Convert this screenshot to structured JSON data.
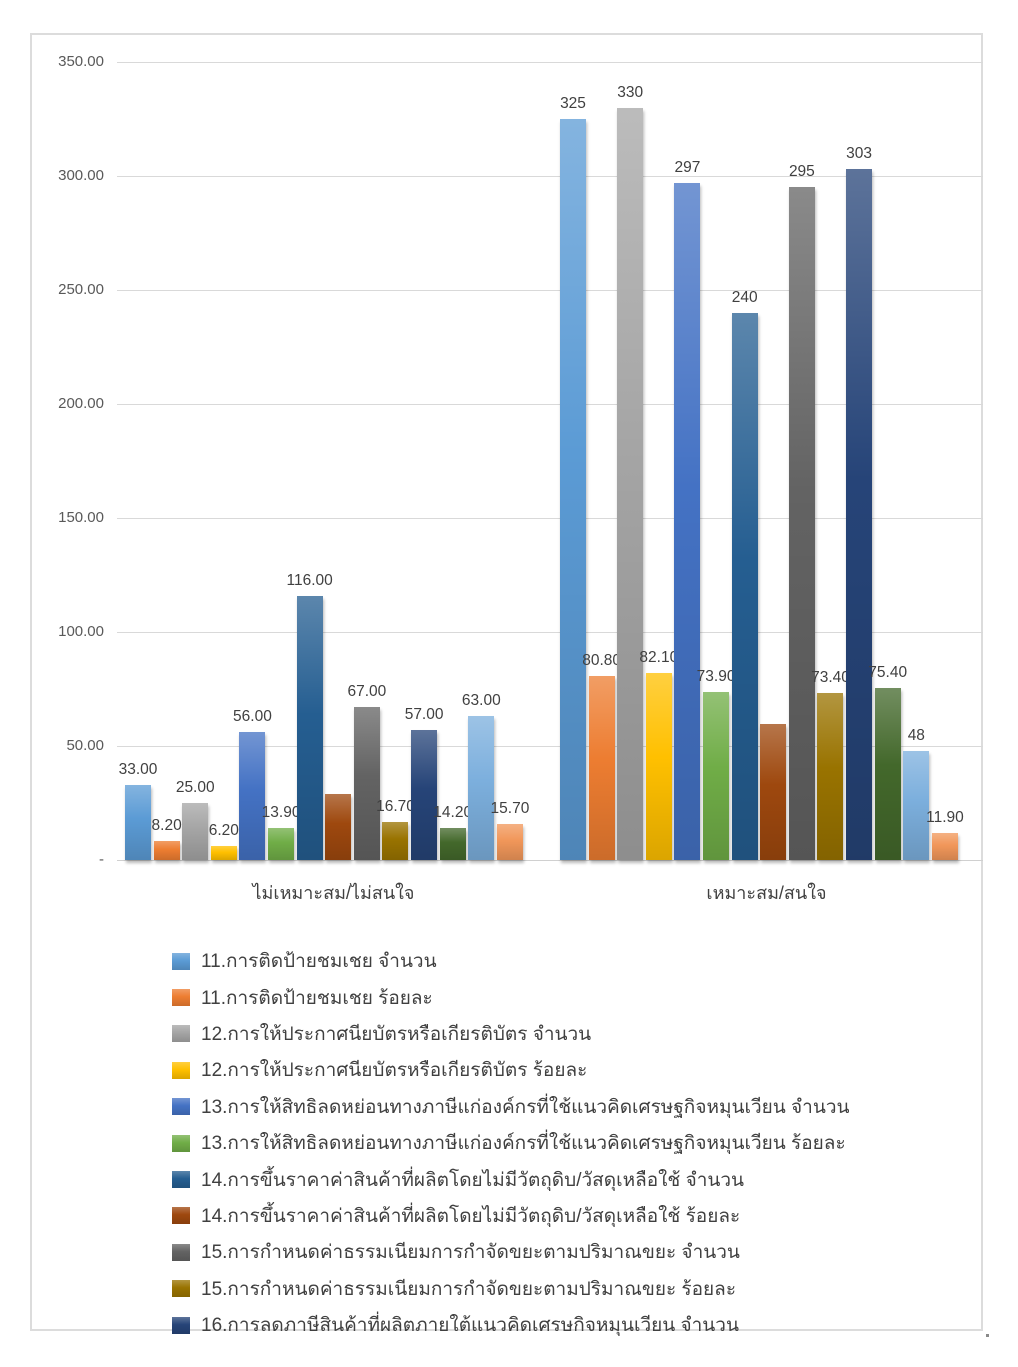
{
  "chart_data": {
    "type": "bar",
    "title": "",
    "categories": [
      "ไม่เหมาะสม/ไม่สนใจ",
      "เหมาะสม/สนใจ"
    ],
    "y_axis": {
      "min": 0,
      "max": 350,
      "tick_interval": 50,
      "tick_labels_top_to_bottom": [
        "350.00",
        "300.00",
        "250.00",
        "200.00",
        "150.00",
        "100.00",
        "50.00",
        "-"
      ]
    },
    "gridlines": true,
    "legend_position": "bottom-left",
    "legend_visible_count": 11,
    "series": [
      {
        "name": "11.การติดป้ายชมเชย จำนวน",
        "color": "#5B9BD5",
        "in_legend": true,
        "values": [
          33.0,
          325
        ],
        "data_labels": [
          "33.00",
          "325"
        ]
      },
      {
        "name": "11.การติดป้ายชมเชย ร้อยละ",
        "color": "#ED7D31",
        "in_legend": true,
        "values": [
          8.2,
          80.8
        ],
        "data_labels": [
          "8.20",
          "80.80"
        ]
      },
      {
        "name": "12.การให้ประกาศนียบัตรหรือเกียรติบัตร จำนวน",
        "color": "#A5A5A5",
        "in_legend": true,
        "values": [
          25.0,
          330
        ],
        "data_labels": [
          "25.00",
          "330"
        ]
      },
      {
        "name": "12.การให้ประกาศนียบัตรหรือเกียรติบัตร ร้อยละ",
        "color": "#FFC000",
        "in_legend": true,
        "values": [
          6.2,
          82.1
        ],
        "data_labels": [
          "6.20",
          "82.10"
        ]
      },
      {
        "name": "13.การให้สิทธิลดหย่อนทางภาษีแก่องค์กรที่ใช้แนวคิดเศรษฐกิจหมุนเวียน จำนวน",
        "color": "#4472C4",
        "in_legend": true,
        "values": [
          56.0,
          297
        ],
        "data_labels": [
          "56.00",
          "297"
        ]
      },
      {
        "name": "13.การให้สิทธิลดหย่อนทางภาษีแก่องค์กรที่ใช้แนวคิดเศรษฐกิจหมุนเวียน ร้อยละ",
        "color": "#70AD47",
        "in_legend": true,
        "values": [
          13.9,
          73.9
        ],
        "data_labels": [
          "13.90",
          "73.90"
        ]
      },
      {
        "name": "14.การขึ้นราคาค่าสินค้าที่ผลิตโดยไม่มีวัตถุดิบ/วัสดุเหลือใช้ จำนวน",
        "color": "#255E91",
        "in_legend": true,
        "values": [
          116.0,
          240
        ],
        "data_labels": [
          "116.00",
          "240"
        ]
      },
      {
        "name": "14.การขึ้นราคาค่าสินค้าที่ผลิตโดยไม่มีวัตถุดิบ/วัสดุเหลือใช้ ร้อยละ",
        "color": "#9E480E",
        "in_legend": true,
        "values": [
          28.9,
          59.7
        ],
        "data_labels": [
          "",
          ""
        ]
      },
      {
        "name": "15.การกำหนดค่าธรรมเนียมการกำจัดขยะตามปริมาณขยะ จำนวน",
        "color": "#636363",
        "in_legend": true,
        "values": [
          67.0,
          295
        ],
        "data_labels": [
          "67.00",
          "295"
        ]
      },
      {
        "name": "15.การกำหนดค่าธรรมเนียมการกำจัดขยะตามปริมาณขยะ ร้อยละ",
        "color": "#997300",
        "in_legend": true,
        "values": [
          16.7,
          73.4
        ],
        "data_labels": [
          "16.70",
          "73.40"
        ]
      },
      {
        "name": "16.การลดภาษีสินค้าที่ผลิตภายใต้แนวคิดเศรษกิจหมุนเวียน จำนวน",
        "color": "#264478",
        "in_legend": true,
        "values": [
          57.0,
          303
        ],
        "data_labels": [
          "57.00",
          "303"
        ]
      },
      {
        "name": "",
        "color": "#43682B",
        "in_legend": false,
        "values": [
          14.2,
          75.4
        ],
        "data_labels": [
          "14.20",
          "75.40"
        ]
      },
      {
        "name": "",
        "color": "#7CAFDD",
        "in_legend": false,
        "values": [
          63.0,
          48
        ],
        "data_labels": [
          "63.00",
          "48"
        ]
      },
      {
        "name": "",
        "color": "#F1975A",
        "in_legend": false,
        "values": [
          15.7,
          11.9
        ],
        "data_labels": [
          "15.70",
          "11.90"
        ]
      }
    ],
    "colors": {
      "frame_border": "#DCDCDC",
      "gridline": "#D9D9D9",
      "tick_text": "#595959",
      "label_text": "#404040"
    }
  }
}
